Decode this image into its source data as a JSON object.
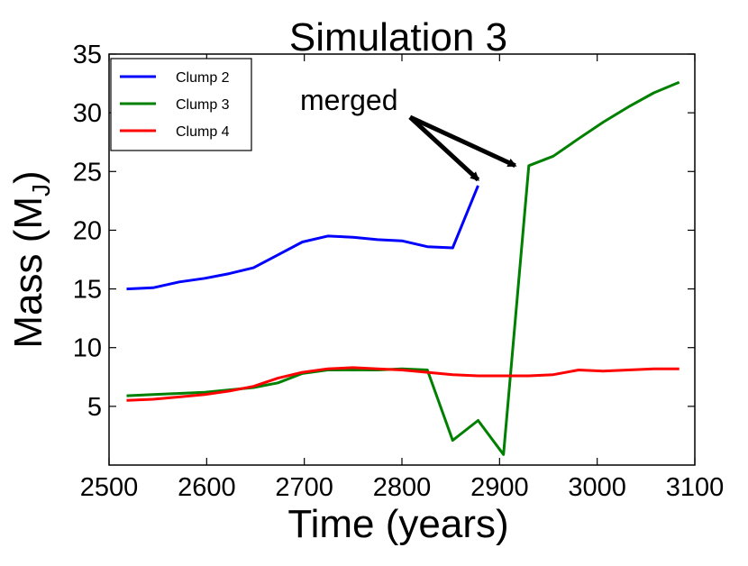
{
  "chart_data": {
    "type": "line",
    "title": "Simulation 3",
    "xlabel": "Time (years)",
    "ylabel_main": "Mass (M",
    "ylabel_sub": "J",
    "ylabel_close": ")",
    "xlim": [
      2500,
      3100
    ],
    "ylim": [
      0,
      35
    ],
    "xticks": [
      2500,
      2600,
      2700,
      2800,
      2900,
      3000,
      3100
    ],
    "yticks": [
      5,
      10,
      15,
      20,
      25,
      30,
      35
    ],
    "grid": false,
    "legend_position": "top-left",
    "series": [
      {
        "name": "Clump 2",
        "color": "#0000ff",
        "x": [
          2518,
          2545,
          2572,
          2598,
          2623,
          2648,
          2673,
          2698,
          2724,
          2750,
          2775,
          2800,
          2826,
          2852,
          2878
        ],
        "y": [
          15.0,
          15.1,
          15.6,
          15.9,
          16.3,
          16.8,
          17.9,
          19.0,
          19.5,
          19.4,
          19.2,
          19.1,
          18.6,
          18.5,
          23.8
        ]
      },
      {
        "name": "Clump 3",
        "color": "#008000",
        "x": [
          2518,
          2545,
          2572,
          2598,
          2623,
          2648,
          2673,
          2698,
          2724,
          2750,
          2775,
          2800,
          2826,
          2852,
          2878,
          2904,
          2930,
          2955,
          2981,
          3006,
          3032,
          3058,
          3084
        ],
        "y": [
          5.9,
          6.0,
          6.1,
          6.2,
          6.4,
          6.6,
          7.0,
          7.8,
          8.1,
          8.1,
          8.1,
          8.2,
          8.1,
          2.1,
          3.8,
          0.9,
          25.5,
          26.3,
          27.8,
          29.2,
          30.5,
          31.7,
          32.6
        ]
      },
      {
        "name": "Clump 4",
        "color": "#ff0000",
        "x": [
          2518,
          2545,
          2572,
          2598,
          2623,
          2648,
          2673,
          2698,
          2724,
          2750,
          2775,
          2800,
          2826,
          2852,
          2878,
          2904,
          2930,
          2955,
          2981,
          3006,
          3032,
          3058,
          3084
        ],
        "y": [
          5.5,
          5.6,
          5.8,
          6.0,
          6.3,
          6.7,
          7.4,
          7.9,
          8.2,
          8.3,
          8.2,
          8.1,
          7.9,
          7.7,
          7.6,
          7.6,
          7.6,
          7.7,
          8.1,
          8.0,
          8.1,
          8.2,
          8.2
        ]
      }
    ],
    "annotation": {
      "text": "merged",
      "arrow_targets": [
        [
          2878,
          24.3
        ],
        [
          2916,
          25.5
        ]
      ]
    }
  }
}
